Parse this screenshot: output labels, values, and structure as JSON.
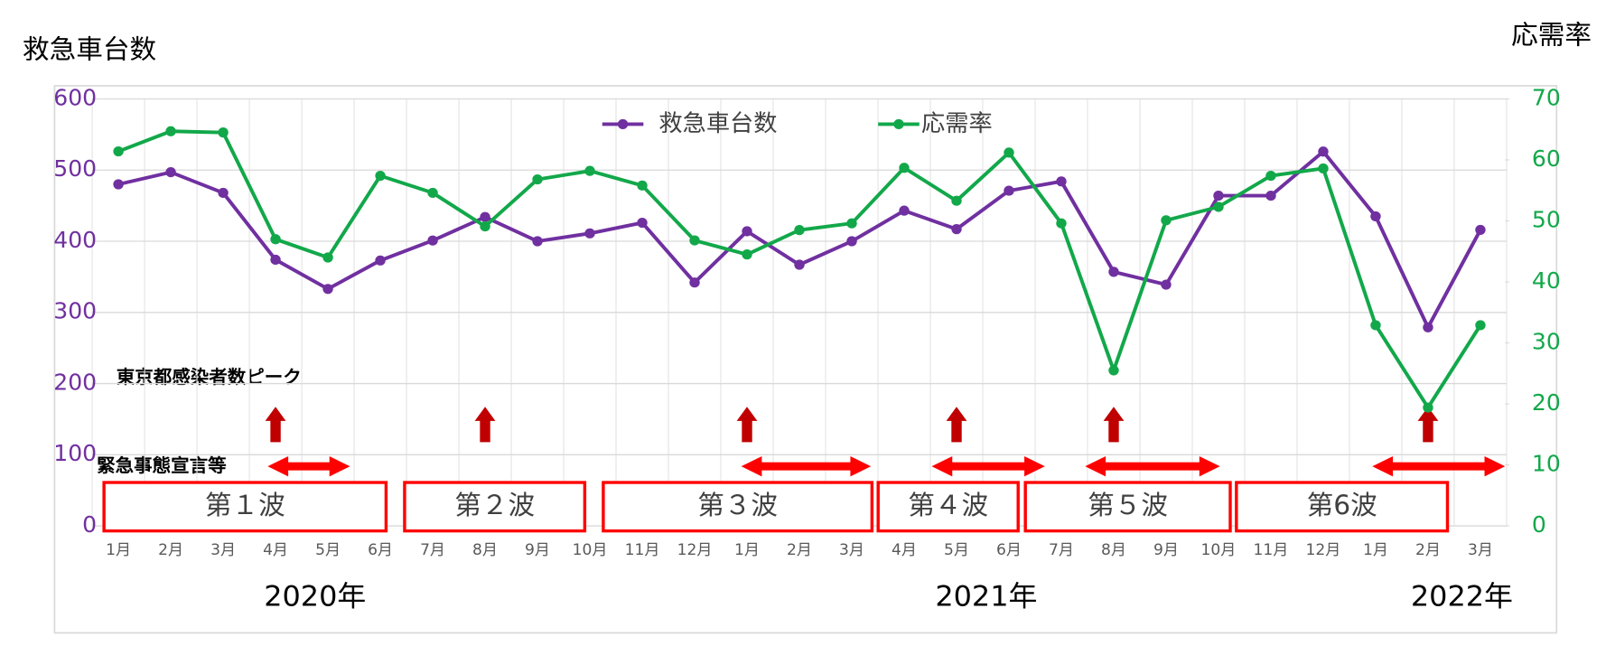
{
  "chart_data": {
    "type": "line",
    "y_title": "救急車台数",
    "y2_title": "応需率",
    "categories": [
      "1月",
      "2月",
      "3月",
      "4月",
      "5月",
      "6月",
      "7月",
      "8月",
      "9月",
      "10月",
      "11月",
      "12月",
      "1月",
      "2月",
      "3月",
      "4月",
      "5月",
      "6月",
      "7月",
      "8月",
      "9月",
      "10月",
      "11月",
      "12月",
      "1月",
      "2月",
      "3月"
    ],
    "years": [
      "2020年",
      "2021年",
      "2022年"
    ],
    "series": [
      {
        "name": "救急車台数",
        "color": "#7030a0",
        "values": [
          480,
          497,
          468,
          374,
          333,
          373,
          401,
          434,
          400,
          411,
          426,
          342,
          414,
          367,
          400,
          443,
          417,
          471,
          484,
          357,
          339,
          464,
          464,
          526,
          435,
          279,
          416
        ]
      },
      {
        "name": "応需率",
        "color": "#12a84a",
        "axis": "y2",
        "values": [
          61.4,
          64.7,
          64.5,
          47.0,
          44.0,
          57.4,
          54.6,
          49.1,
          56.8,
          58.2,
          55.8,
          46.8,
          44.5,
          48.5,
          49.6,
          58.7,
          53.3,
          61.2,
          49.6,
          25.5,
          50.1,
          52.3,
          57.4,
          58.6,
          32.9,
          19.4,
          32.9
        ]
      }
    ],
    "ylim": [
      0,
      600
    ],
    "yticks": [
      0,
      100,
      200,
      300,
      400,
      500,
      600
    ],
    "y2lim": [
      0,
      70
    ],
    "y2ticks": [
      0,
      10,
      20,
      30,
      40,
      50,
      60,
      70
    ],
    "grid": true,
    "annotations": [
      "東京都感染者数ピーク",
      "緊急事態宣言等"
    ],
    "waves": [
      "第１波",
      "第２波",
      "第３波",
      "第４波",
      "第５波",
      "第6波"
    ]
  }
}
